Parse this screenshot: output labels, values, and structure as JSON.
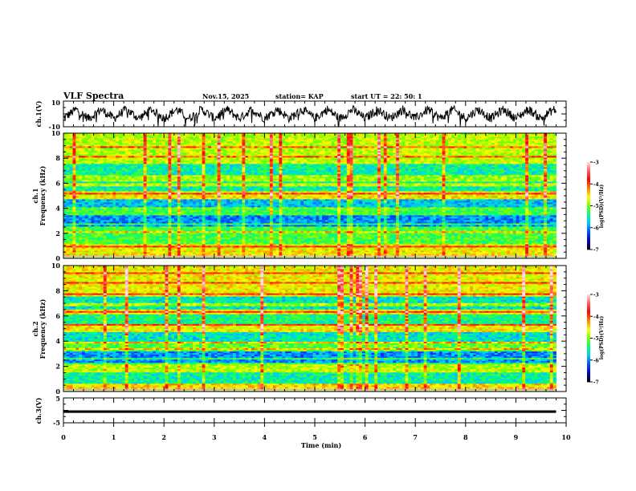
{
  "header": {
    "title": "VLF Spectra",
    "date": "Nov.15, 2025",
    "station": "station= KAP",
    "start": "start  UT  =    22: 50: 1"
  },
  "chart_data": [
    {
      "type": "line",
      "panel": "ch1-waveform",
      "ylabel": "ch.1(V)",
      "ylim": [
        -10,
        10
      ],
      "yticks": [
        "10",
        "-10"
      ],
      "xlim": [
        0,
        10
      ],
      "data_end_min": 9.8,
      "description_values": {
        "mean": 0,
        "amplitude_range": [
          -10,
          10
        ],
        "oscillation_period_min": 0.5
      }
    },
    {
      "type": "heatmap",
      "panel": "ch1-spectrogram",
      "ylabel": "ch.1\nFrequency  (kHz)",
      "ylabel_lines": [
        "ch.1",
        "Frequency  (kHz)"
      ],
      "ylim": [
        0,
        10
      ],
      "yticks": [
        "0",
        "2",
        "4",
        "6",
        "8",
        "10"
      ],
      "xlim": [
        0,
        10
      ],
      "data_end_min": 9.8,
      "colorbar": {
        "label": "log(PSD)(V²/Hz)",
        "range": [
          -7,
          -3
        ],
        "ticks": [
          "-3",
          "-4",
          "-5",
          "-6",
          "-7"
        ]
      },
      "bands_khz": [
        {
          "from": 0,
          "to": 1.2,
          "level": -4.6
        },
        {
          "from": 1.2,
          "to": 2.6,
          "level": -5.2
        },
        {
          "from": 2.6,
          "to": 3.4,
          "level": -6.0
        },
        {
          "from": 3.4,
          "to": 4.0,
          "level": -5.2
        },
        {
          "from": 4.0,
          "to": 4.8,
          "level": -5.8
        },
        {
          "from": 4.8,
          "to": 5.4,
          "level": -4.6
        },
        {
          "from": 5.4,
          "to": 6.2,
          "level": -5.5
        },
        {
          "from": 6.2,
          "to": 6.7,
          "level": -4.9
        },
        {
          "from": 6.7,
          "to": 7.6,
          "level": -5.5
        },
        {
          "from": 7.6,
          "to": 10,
          "level": -4.8
        }
      ]
    },
    {
      "type": "heatmap",
      "panel": "ch2-spectrogram",
      "ylabel_lines": [
        "ch.2",
        "Frequency  (kHz)"
      ],
      "ylim": [
        0,
        10
      ],
      "yticks": [
        "0",
        "2",
        "4",
        "6",
        "8",
        "10"
      ],
      "xlim": [
        0,
        10
      ],
      "data_end_min": 9.8,
      "colorbar": {
        "label": "log(PSD)(V²/Hz)",
        "range": [
          -7,
          -3
        ],
        "ticks": [
          "-3",
          "-4",
          "-5",
          "-6",
          "-7"
        ]
      },
      "bands_khz": [
        {
          "from": 0,
          "to": 0.6,
          "level": -4.5
        },
        {
          "from": 0.6,
          "to": 1.6,
          "level": -5.5
        },
        {
          "from": 1.6,
          "to": 2.2,
          "level": -4.8
        },
        {
          "from": 2.2,
          "to": 3.2,
          "level": -6.0
        },
        {
          "from": 3.2,
          "to": 4.0,
          "level": -5.1
        },
        {
          "from": 4.0,
          "to": 4.8,
          "level": -5.6
        },
        {
          "from": 4.8,
          "to": 5.4,
          "level": -4.6
        },
        {
          "from": 5.4,
          "to": 6.2,
          "level": -5.4
        },
        {
          "from": 6.2,
          "to": 6.6,
          "level": -4.6
        },
        {
          "from": 6.6,
          "to": 7.6,
          "level": -5.6
        },
        {
          "from": 7.6,
          "to": 10,
          "level": -4.6
        }
      ]
    },
    {
      "type": "line",
      "panel": "ch3-waveform",
      "ylabel": "ch.3(V)",
      "ylim": [
        -5,
        5
      ],
      "yticks": [
        "5",
        "-5"
      ],
      "xlim": [
        0,
        10
      ],
      "data_end_min": 9.8,
      "level_v": [
        -1.0,
        0.0
      ]
    }
  ],
  "xaxis": {
    "label": "Time  (min)",
    "ticks": [
      "0",
      "1",
      "2",
      "3",
      "4",
      "5",
      "6",
      "7",
      "8",
      "9",
      "10"
    ]
  },
  "colors": {
    "axis": "#000000",
    "colormap": [
      "#000000",
      "#0000c8",
      "#0050ff",
      "#00c8ff",
      "#00ff78",
      "#78ff00",
      "#ffff00",
      "#ff8000",
      "#ff0000",
      "#ff6060",
      "#ffe0e0"
    ]
  }
}
